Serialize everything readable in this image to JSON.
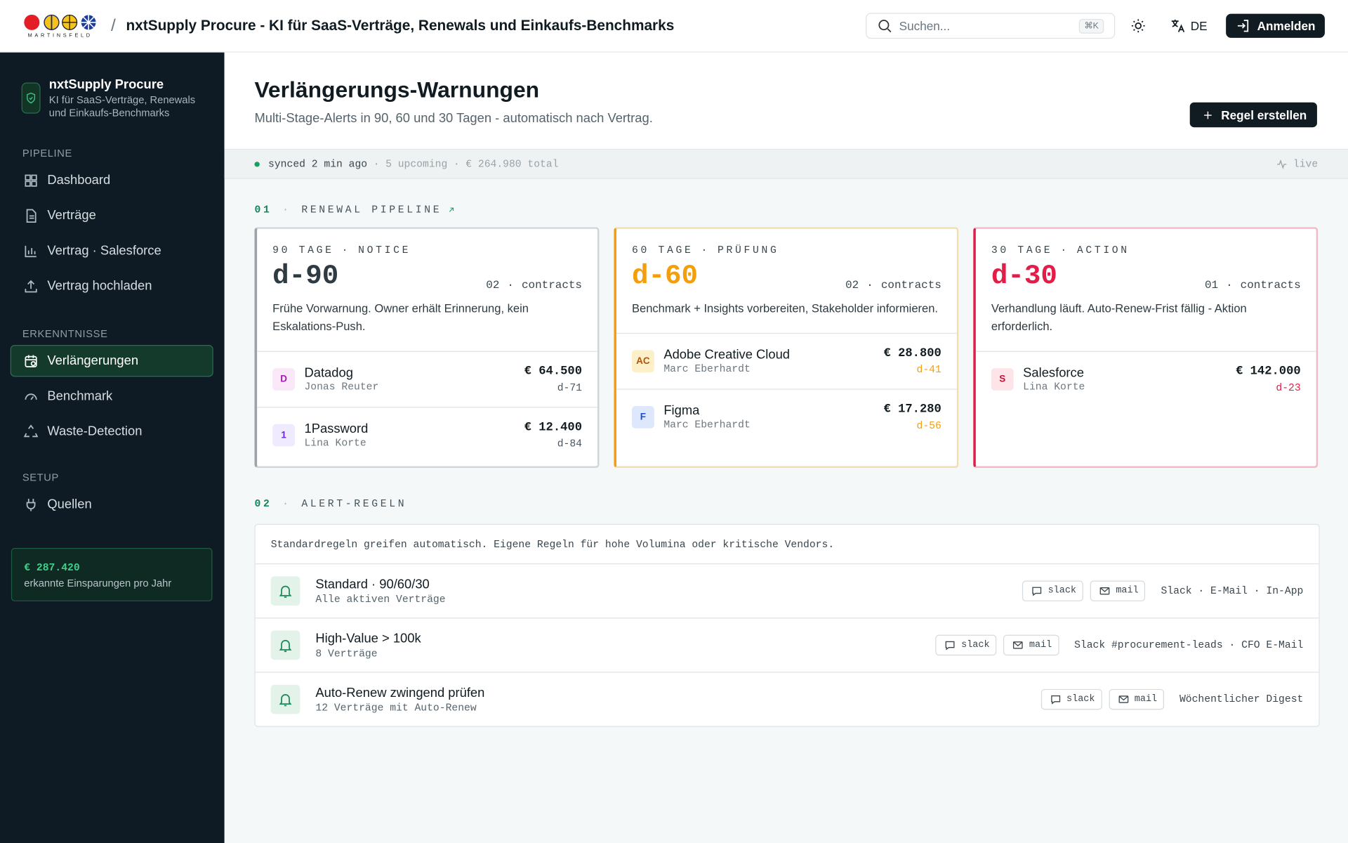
{
  "header": {
    "logo_text": "MARTINSFELD",
    "separator": "/",
    "title": "nxtSupply Procure - KI für SaaS-Verträge, Renewals und Einkaufs-Benchmarks",
    "search_placeholder": "Suchen...",
    "search_shortcut": "⌘K",
    "language": "DE",
    "login": "Anmelden"
  },
  "sidebar": {
    "product_name": "nxtSupply Procure",
    "product_tagline": "KI für SaaS-Verträge, Renewals und Einkaufs-Benchmarks",
    "sections": [
      {
        "title": "PIPELINE",
        "items": [
          {
            "label": "Dashboard"
          },
          {
            "label": "Verträge"
          },
          {
            "label": "Vertrag · Salesforce"
          },
          {
            "label": "Vertrag hochladen"
          }
        ]
      },
      {
        "title": "ERKENNTNISSE",
        "items": [
          {
            "label": "Verlängerungen",
            "active": true
          },
          {
            "label": "Benchmark"
          },
          {
            "label": "Waste-Detection"
          }
        ]
      },
      {
        "title": "SETUP",
        "items": [
          {
            "label": "Quellen"
          }
        ]
      }
    ],
    "savings": {
      "amount": "€ 287.420",
      "caption": "erkannte Einsparungen pro Jahr"
    }
  },
  "page": {
    "title": "Verlängerungs-Warnungen",
    "subtitle": "Multi-Stage-Alerts in 90, 60 und 30 Tagen - automatisch nach Vertrag.",
    "create_rule": "Regel erstellen"
  },
  "separator": "·",
  "status": {
    "synced": "synced 2 min ago",
    "upcoming": "5 upcoming",
    "total": "€ 264.980 total",
    "live": "live"
  },
  "pipeline": {
    "number": "01",
    "title": "RENEWAL PIPELINE",
    "stages": [
      {
        "label": "90 TAGE",
        "kind": "NOTICE",
        "day": "d-90",
        "count": "02",
        "count_unit": "contracts",
        "description": "Frühe Vorwarnung. Owner erhält Erinnerung, kein Eskalations-Push.",
        "color": "#2f3b42",
        "accent": "#9aa4aa",
        "border": "#cfd6da",
        "due_color": "#4b5560",
        "contracts": [
          {
            "initial": "D",
            "badge_color": "#a21caf",
            "badge_bg": "#fae8f8",
            "name": "Datadog",
            "owner": "Jonas Reuter",
            "amount": "€ 64.500",
            "due": "d-71"
          },
          {
            "initial": "1",
            "badge_color": "#6d28d9",
            "badge_bg": "#efeafd",
            "name": "1Password",
            "owner": "Lina Korte",
            "amount": "€ 12.400",
            "due": "d-84"
          }
        ]
      },
      {
        "label": "60 TAGE",
        "kind": "PRÜFUNG",
        "day": "d-60",
        "count": "02",
        "count_unit": "contracts",
        "description": "Benchmark + Insights vorbereiten, Stakeholder informieren.",
        "color": "#f59e0b",
        "accent": "#f59e0b",
        "border": "#f3dcae",
        "due_color": "#f59e0b",
        "contracts": [
          {
            "initial": "AC",
            "badge_color": "#b45309",
            "badge_bg": "#fdf0c8",
            "name": "Adobe Creative Cloud",
            "owner": "Marc Eberhardt",
            "amount": "€ 28.800",
            "due": "d-41"
          },
          {
            "initial": "F",
            "badge_color": "#1d4ed8",
            "badge_bg": "#dde8fd",
            "name": "Figma",
            "owner": "Marc Eberhardt",
            "amount": "€ 17.280",
            "due": "d-56"
          }
        ]
      },
      {
        "label": "30 TAGE",
        "kind": "ACTION",
        "day": "d-30",
        "count": "01",
        "count_unit": "contracts",
        "description": "Verhandlung läuft. Auto-Renew-Frist fällig - Aktion erforderlich.",
        "color": "#e11d48",
        "accent": "#e11d48",
        "border": "#f2b8c5",
        "due_color": "#e11d48",
        "contracts": [
          {
            "initial": "S",
            "badge_color": "#be123c",
            "badge_bg": "#fde4e8",
            "name": "Salesforce",
            "owner": "Lina Korte",
            "amount": "€ 142.000",
            "due": "d-23"
          }
        ]
      }
    ]
  },
  "alerts": {
    "number": "02",
    "title": "ALERT-REGELN",
    "intro": "Standardregeln greifen automatisch. Eigene Regeln für hohe Volumina oder kritische Vendors.",
    "rules": [
      {
        "name": "Standard · 90/60/30",
        "scope": "Alle aktiven Verträge",
        "channels": [
          "slack",
          "mail"
        ],
        "targets": "Slack · E-Mail · In-App"
      },
      {
        "name": "High-Value > 100k",
        "scope": "8 Verträge",
        "channels": [
          "slack",
          "mail"
        ],
        "targets": "Slack #procurement-leads · CFO E-Mail"
      },
      {
        "name": "Auto-Renew zwingend prüfen",
        "scope": "12 Verträge mit Auto-Renew",
        "channels": [
          "slack",
          "mail"
        ],
        "targets": "Wöchentlicher Digest"
      }
    ]
  }
}
